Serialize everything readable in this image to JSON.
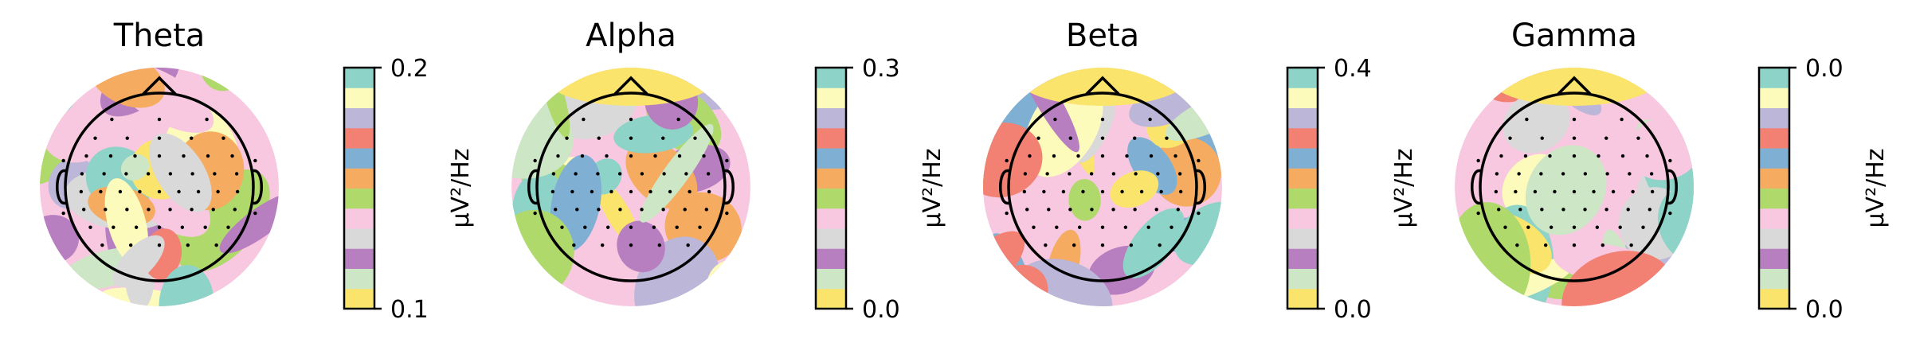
{
  "chart_data": {
    "type": "heatmap",
    "colormap": [
      "#fbe46c",
      "#cde7c6",
      "#b77fc0",
      "#d9d9d9",
      "#f7c8df",
      "#b0d96c",
      "#f5ab60",
      "#7fb0d3",
      "#f28073",
      "#bcb6d8",
      "#fdfbbb",
      "#8dd3c7"
    ],
    "panels": [
      {
        "title": "Theta",
        "unit": "µV²/Hz",
        "vmin_label": "0.1",
        "vmax_label": "0.2",
        "vmin": 0.1,
        "vmax": 0.2
      },
      {
        "title": "Alpha",
        "unit": "µV²/Hz",
        "vmin_label": "0.0",
        "vmax_label": "0.3",
        "vmin": 0.0,
        "vmax": 0.3
      },
      {
        "title": "Beta",
        "unit": "µV²/Hz",
        "vmin_label": "0.0",
        "vmax_label": "0.4",
        "vmin": 0.0,
        "vmax": 0.4
      },
      {
        "title": "Gamma",
        "unit": "µV²/Hz",
        "vmin_label": "0.0",
        "vmax_label": "0.0",
        "vmin": 0.0,
        "vmax": 0.0
      }
    ]
  }
}
